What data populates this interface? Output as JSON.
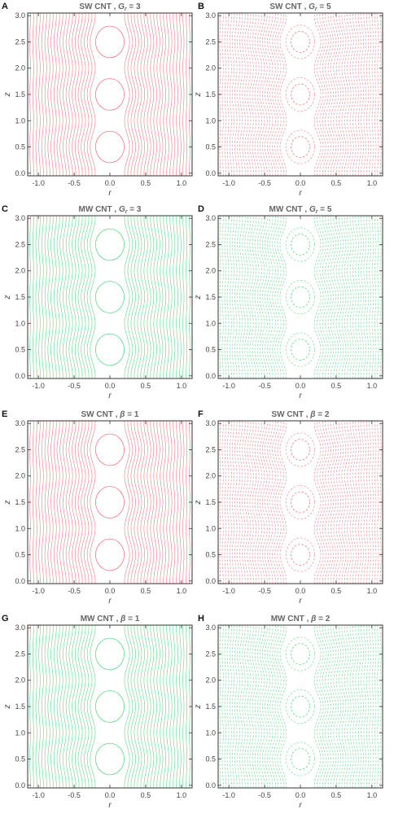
{
  "chart_data": [
    {
      "panel": "A",
      "type": "contour",
      "title_prefix": "SW CNT ,",
      "param_symbol": "G",
      "param_subscript": "r",
      "param_value": "3",
      "color": "#f47a84",
      "style": "solid",
      "xlabel": "r",
      "ylabel": "z",
      "xlim": [
        -1.15,
        1.15
      ],
      "ylim": [
        -0.05,
        3.05
      ],
      "xticks": [
        "-1.0",
        "-0.5",
        "0.0",
        "0.5",
        "1.0"
      ],
      "yticks": [
        "0.0",
        "0.5",
        "1.0",
        "1.5",
        "2.0",
        "2.5",
        "3.0"
      ],
      "closed_cells_z": [
        0.5,
        1.5,
        2.5
      ]
    },
    {
      "panel": "B",
      "type": "contour",
      "title_prefix": "SW CNT ,",
      "param_symbol": "G",
      "param_subscript": "r",
      "param_value": "5",
      "color": "#f47a84",
      "style": "dashed",
      "xlabel": "r",
      "ylabel": "z",
      "xlim": [
        -1.15,
        1.15
      ],
      "ylim": [
        -0.05,
        3.05
      ],
      "xticks": [
        "-1.0",
        "-0.5",
        "0.0",
        "0.5",
        "1.0"
      ],
      "yticks": [
        "0.0",
        "0.5",
        "1.0",
        "1.5",
        "2.0",
        "2.5",
        "3.0"
      ],
      "closed_cells_z": [
        0.5,
        1.5,
        2.5
      ]
    },
    {
      "panel": "C",
      "type": "contour",
      "title_prefix": "MW CNT ,",
      "param_symbol": "G",
      "param_subscript": "r",
      "param_value": "3",
      "color": "#5fd98a",
      "style": "solid",
      "xlabel": "r",
      "ylabel": "z",
      "xlim": [
        -1.15,
        1.15
      ],
      "ylim": [
        -0.05,
        3.05
      ],
      "xticks": [
        "-1.0",
        "-0.5",
        "0.0",
        "0.5",
        "1.0"
      ],
      "yticks": [
        "0.0",
        "0.5",
        "1.0",
        "1.5",
        "2.0",
        "2.5",
        "3.0"
      ],
      "closed_cells_z": [
        0.5,
        1.5,
        2.5
      ]
    },
    {
      "panel": "D",
      "type": "contour",
      "title_prefix": "MW CNT ,",
      "param_symbol": "G",
      "param_subscript": "r",
      "param_value": "5",
      "color": "#5fd98a",
      "style": "dashed",
      "xlabel": "r",
      "ylabel": "z",
      "xlim": [
        -1.15,
        1.15
      ],
      "ylim": [
        -0.05,
        3.05
      ],
      "xticks": [
        "-1.0",
        "-0.5",
        "0.0",
        "0.5",
        "1.0"
      ],
      "yticks": [
        "0.0",
        "0.5",
        "1.0",
        "1.5",
        "2.0",
        "2.5",
        "3.0"
      ],
      "closed_cells_z": [
        0.5,
        1.5,
        2.5
      ]
    },
    {
      "panel": "E",
      "type": "contour",
      "title_prefix": "SW CNT ,",
      "param_symbol": "β",
      "param_subscript": "",
      "param_value": "1",
      "color": "#f47a84",
      "style": "solid",
      "xlabel": "r",
      "ylabel": "z",
      "xlim": [
        -1.15,
        1.15
      ],
      "ylim": [
        -0.05,
        3.05
      ],
      "xticks": [
        "-1.0",
        "-0.5",
        "0.0",
        "0.5",
        "1.0"
      ],
      "yticks": [
        "0.0",
        "0.5",
        "1.0",
        "1.5",
        "2.0",
        "2.5",
        "3.0"
      ],
      "closed_cells_z": [
        0.5,
        1.5,
        2.5
      ]
    },
    {
      "panel": "F",
      "type": "contour",
      "title_prefix": "SW CNT ,",
      "param_symbol": "β",
      "param_subscript": "",
      "param_value": "2",
      "color": "#f47a84",
      "style": "dashed",
      "xlabel": "r",
      "ylabel": "z",
      "xlim": [
        -1.15,
        1.15
      ],
      "ylim": [
        -0.05,
        3.05
      ],
      "xticks": [
        "-1.0",
        "-0.5",
        "0.0",
        "0.5",
        "1.0"
      ],
      "yticks": [
        "0.0",
        "0.5",
        "1.0",
        "1.5",
        "2.0",
        "2.5",
        "3.0"
      ],
      "closed_cells_z": [
        0.5,
        1.5,
        2.5
      ]
    },
    {
      "panel": "G",
      "type": "contour",
      "title_prefix": "MW CNT ,",
      "param_symbol": "β",
      "param_subscript": "",
      "param_value": "1",
      "color": "#5fd98a",
      "style": "solid",
      "xlabel": "r",
      "ylabel": "z",
      "xlim": [
        -1.15,
        1.15
      ],
      "ylim": [
        -0.05,
        3.05
      ],
      "xticks": [
        "-1.0",
        "-0.5",
        "0.0",
        "0.5",
        "1.0"
      ],
      "yticks": [
        "0.0",
        "0.5",
        "1.0",
        "1.5",
        "2.0",
        "2.5",
        "3.0"
      ],
      "closed_cells_z": [
        0.5,
        1.5,
        2.5
      ]
    },
    {
      "panel": "H",
      "type": "contour",
      "title_prefix": "MW CNT ,",
      "param_symbol": "β",
      "param_subscript": "",
      "param_value": "2",
      "color": "#5fd98a",
      "style": "dashed",
      "xlabel": "r",
      "ylabel": "z",
      "xlim": [
        -1.15,
        1.15
      ],
      "ylim": [
        -0.05,
        3.05
      ],
      "xticks": [
        "-1.0",
        "-0.5",
        "0.0",
        "0.5",
        "1.0"
      ],
      "yticks": [
        "0.0",
        "0.5",
        "1.0",
        "1.5",
        "2.0",
        "2.5",
        "3.0"
      ],
      "closed_cells_z": [
        0.5,
        1.5,
        2.5
      ]
    }
  ]
}
